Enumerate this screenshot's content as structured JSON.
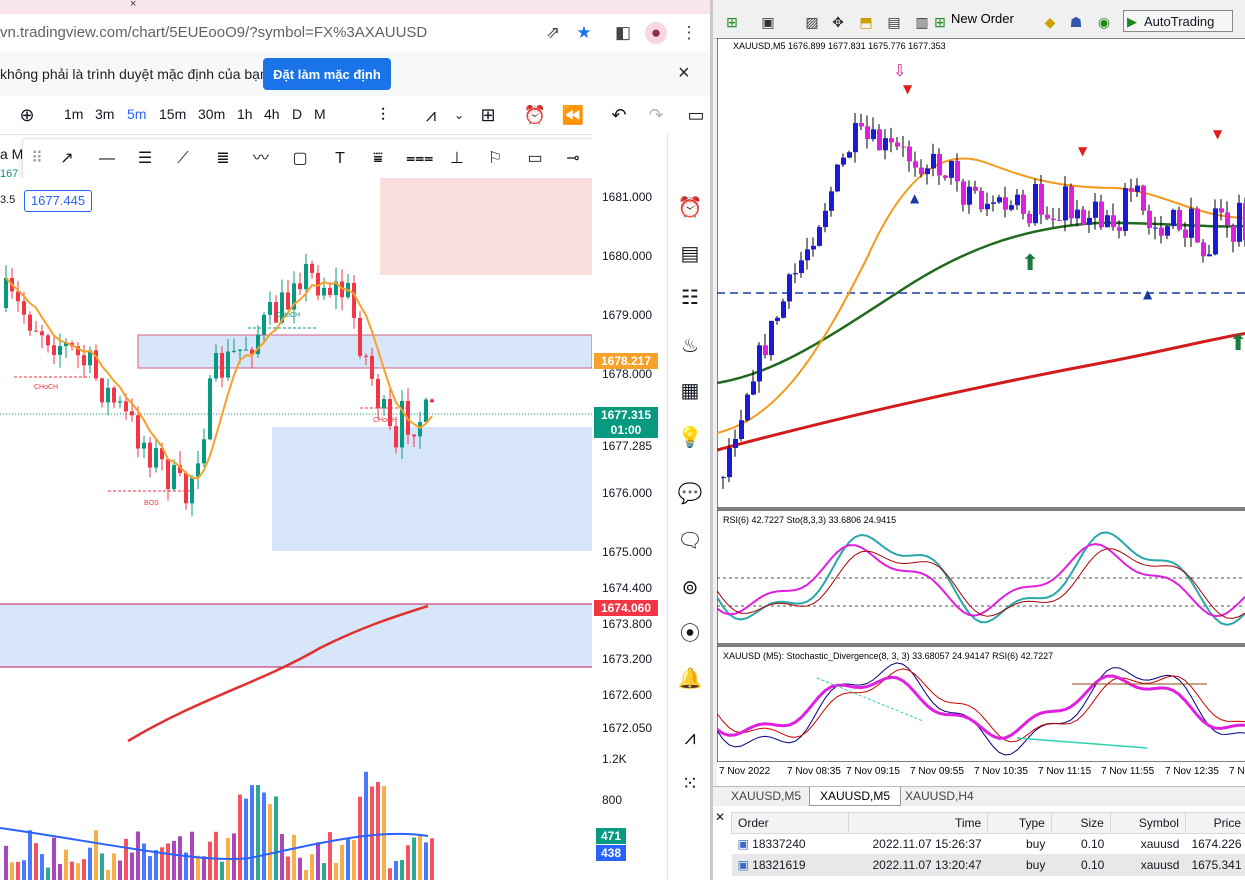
{
  "browser": {
    "tab_fragment": "×",
    "url": "vn.tradingview.com/chart/5EUEooO9/?symbol=FX%3AXAUUSD",
    "info_text": "không phải là trình duyệt mặc định của bạn",
    "set_default_label": "Đặt làm mặc định",
    "close_label": "×"
  },
  "tv": {
    "timeframes": [
      "1m",
      "3m",
      "5m",
      "15m",
      "30m",
      "1h",
      "4h",
      "D",
      "M"
    ],
    "active_timeframe": "5m",
    "symbol_title": "a M",
    "symbol_sub": "167",
    "left_value": "3.5",
    "price_box": "1677.445",
    "price_ticks": [
      "1681.000",
      "1680.000",
      "1679.000",
      "1678.000",
      "1677.285",
      "1676.000",
      "1675.000",
      "1674.400",
      "1673.800",
      "1673.200",
      "1672.600",
      "1672.050"
    ],
    "badges": {
      "ma_orange": "1678.217",
      "current": "1677.315",
      "countdown": "01:00",
      "ma_red": "1674.060"
    },
    "volume_ticks": [
      "1.2K",
      "800"
    ],
    "volume_badges": [
      "471",
      "438"
    ],
    "annotations": [
      "CHoCH",
      "CHoCH",
      "CHoCH",
      "BOS"
    ],
    "colors": {
      "up": "#089981",
      "down": "#f23645",
      "ma_orange": "#f7a12b",
      "ma_red": "#e0312f",
      "zone_blue": "#c8dcf7",
      "zone_red": "#f9d4d4"
    }
  },
  "mt4": {
    "new_order_label": "New Order",
    "autotrading_label": "AutoTrading",
    "chart_title": "XAUUSD,M5  1676.899 1677.831 1675.776 1677.353",
    "rsi_label": "RSI(6) 42.7227   Sto(8,3,3) 33.6806 24.9415",
    "div_label": "XAUUSD (M5):  Stochastic_Divergence(8, 3, 3) 33.68057 24.94147  RSI(6) 42.7227",
    "time_labels": [
      "7 Nov 2022",
      "7 Nov 08:35",
      "7 Nov 09:15",
      "7 Nov 09:55",
      "7 Nov 10:35",
      "7 Nov 11:15",
      "7 Nov 11:55",
      "7 Nov 12:35",
      "7 No"
    ],
    "tabs": [
      "XAUUSD,M5",
      "XAUUSD,M5",
      "XAUUSD,H4"
    ],
    "active_tab": 1,
    "order_columns": [
      "Order",
      "Time",
      "Type",
      "Size",
      "Symbol",
      "Price"
    ],
    "orders": [
      {
        "order": "18337240",
        "time": "2022.11.07 15:26:37",
        "type": "buy",
        "size": "0.10",
        "symbol": "xauusd",
        "price": "1674.226"
      },
      {
        "order": "18321619",
        "time": "2022.11.07 13:20:47",
        "type": "buy",
        "size": "0.10",
        "symbol": "xauusd",
        "price": "1675.341"
      }
    ],
    "colors": {
      "bull": "#1a1ad8",
      "bear": "#e020e0",
      "ma_fast": "#f39a1c",
      "ma_mid": "#1f6a1f",
      "ma_slow": "#d21c1c",
      "osc_bg": "#ffffff"
    }
  }
}
